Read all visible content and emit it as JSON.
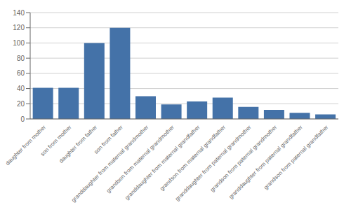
{
  "chart_data": {
    "type": "bar",
    "categories": [
      "daughter from mother",
      "son from mother",
      "daughter from father",
      "son from father",
      "granddaughter from maternal grandmother",
      "grandson from maternal grandmother",
      "granddaughter from maternal grandfather",
      "grandson from maternal grandfather",
      "granddaughter from paternal grandmother",
      "grandson from paternal grandmother",
      "granddaughter from paternal grandfather",
      "grandson from paternal grandfather"
    ],
    "values": [
      41,
      41,
      100,
      120,
      30,
      19,
      23,
      28,
      16,
      12,
      8,
      6
    ],
    "color": "#4472a8",
    "ylim": [
      0,
      140
    ],
    "yticks": [
      0,
      20,
      40,
      60,
      80,
      100,
      120,
      140
    ],
    "grid": true
  }
}
